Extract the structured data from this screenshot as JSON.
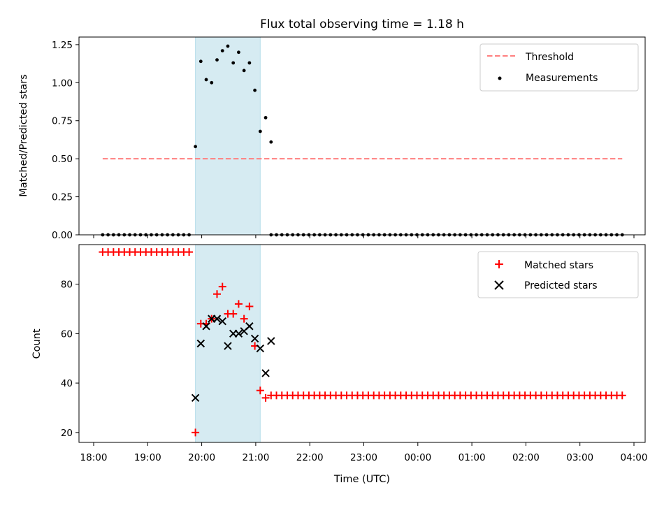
{
  "chart_data": [
    {
      "type": "scatter",
      "title": "Flux total observing time = 1.18 h",
      "xlabel": "",
      "ylabel": "Matched/Predicted stars",
      "ylim": [
        0,
        1.3
      ],
      "yticks": [
        "0.00",
        "0.25",
        "0.50",
        "0.75",
        "1.00",
        "1.25"
      ],
      "threshold": {
        "name": "Threshold",
        "value": 0.5,
        "x_range": [
          "18:10",
          "03:47"
        ],
        "color": "#ff7f7f"
      },
      "observing_window": {
        "start": "19:53",
        "end": "21:05",
        "color": "#add8e6"
      },
      "series": [
        {
          "name": "Measurements",
          "color": "#000000",
          "points": [
            {
              "x": "19:53",
              "y": 0.58
            },
            {
              "x": "19:59",
              "y": 1.14
            },
            {
              "x": "20:05",
              "y": 1.02
            },
            {
              "x": "20:11",
              "y": 1.0
            },
            {
              "x": "20:17",
              "y": 1.15
            },
            {
              "x": "20:23",
              "y": 1.21
            },
            {
              "x": "20:29",
              "y": 1.24
            },
            {
              "x": "20:35",
              "y": 1.13
            },
            {
              "x": "20:41",
              "y": 1.2
            },
            {
              "x": "20:47",
              "y": 1.08
            },
            {
              "x": "20:53",
              "y": 1.13
            },
            {
              "x": "20:59",
              "y": 0.95
            },
            {
              "x": "21:05",
              "y": 0.68
            },
            {
              "x": "21:11",
              "y": 0.77
            },
            {
              "x": "21:17",
              "y": 0.61
            }
          ],
          "zero_baseline": {
            "y": 0,
            "segments": [
              [
                "18:10",
                "19:47",
                6
              ],
              [
                "21:17",
                "03:47",
                6
              ]
            ]
          }
        }
      ],
      "legend": {
        "position": "top-right",
        "entries": [
          "Threshold",
          "Measurements"
        ]
      }
    },
    {
      "type": "scatter",
      "title": "",
      "xlabel": "Time (UTC)",
      "ylabel": "Count",
      "ylim": [
        16,
        96
      ],
      "yticks": [
        "20",
        "40",
        "60",
        "80"
      ],
      "xticks": [
        "18:00",
        "19:00",
        "20:00",
        "21:00",
        "22:00",
        "23:00",
        "00:00",
        "01:00",
        "02:00",
        "03:00",
        "04:00"
      ],
      "observing_window": {
        "start": "19:53",
        "end": "21:05",
        "color": "#add8e6"
      },
      "series": [
        {
          "name": "Matched stars",
          "color": "#ff0000",
          "marker": "plus",
          "points": [
            {
              "x": "19:53",
              "y": 20
            },
            {
              "x": "19:59",
              "y": 64
            },
            {
              "x": "20:05",
              "y": 64
            },
            {
              "x": "20:11",
              "y": 66
            },
            {
              "x": "20:17",
              "y": 76
            },
            {
              "x": "20:23",
              "y": 79
            },
            {
              "x": "20:29",
              "y": 68
            },
            {
              "x": "20:35",
              "y": 68
            },
            {
              "x": "20:41",
              "y": 72
            },
            {
              "x": "20:47",
              "y": 66
            },
            {
              "x": "20:53",
              "y": 71
            },
            {
              "x": "20:59",
              "y": 55
            },
            {
              "x": "21:05",
              "y": 37
            },
            {
              "x": "21:11",
              "y": 34
            }
          ],
          "flat_segments": [
            {
              "y": 93,
              "from": "18:10",
              "to": "19:47",
              "step_minutes": 6
            },
            {
              "y": 35,
              "from": "21:17",
              "to": "03:47",
              "step_minutes": 6
            }
          ]
        },
        {
          "name": "Predicted stars",
          "color": "#000000",
          "marker": "x",
          "points": [
            {
              "x": "19:53",
              "y": 34
            },
            {
              "x": "19:59",
              "y": 56
            },
            {
              "x": "20:05",
              "y": 63
            },
            {
              "x": "20:11",
              "y": 66
            },
            {
              "x": "20:17",
              "y": 66
            },
            {
              "x": "20:23",
              "y": 65
            },
            {
              "x": "20:29",
              "y": 55
            },
            {
              "x": "20:35",
              "y": 60
            },
            {
              "x": "20:41",
              "y": 60
            },
            {
              "x": "20:47",
              "y": 61
            },
            {
              "x": "20:53",
              "y": 63
            },
            {
              "x": "20:59",
              "y": 58
            },
            {
              "x": "21:05",
              "y": 54
            },
            {
              "x": "21:11",
              "y": 44
            },
            {
              "x": "21:17",
              "y": 57
            }
          ]
        }
      ],
      "legend": {
        "position": "top-right",
        "entries": [
          "Matched stars",
          "Predicted stars"
        ]
      }
    }
  ]
}
